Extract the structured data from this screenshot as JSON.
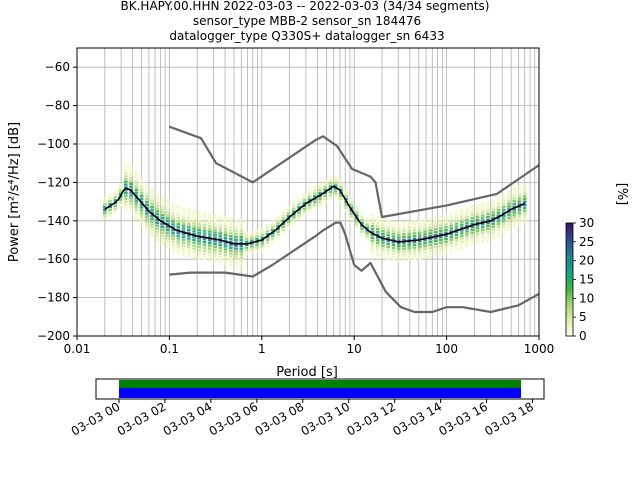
{
  "header": {
    "line1": "BK.HAPY.00.HHN   2022-03-03 -- 2022-03-03  (34/34 segments)",
    "line2": "sensor_type MBB-2 sensor_sn 184476",
    "line3": "datalogger_type Q330S+ datalogger_sn 6433"
  },
  "chart_data": [
    {
      "type": "heatmap",
      "xlabel": "Period [s]",
      "ylabel": "Power [m²/s⁴/Hz] [dB]",
      "xscale": "log",
      "xlim": [
        0.01,
        1000
      ],
      "ylim": [
        -200,
        -50
      ],
      "x_ticks": [
        {
          "v": 0.01,
          "label": "0.01"
        },
        {
          "v": 0.1,
          "label": "0.1"
        },
        {
          "v": 1,
          "label": "1"
        },
        {
          "v": 10,
          "label": "10"
        },
        {
          "v": 100,
          "label": "100"
        },
        {
          "v": 1000,
          "label": "1000"
        }
      ],
      "y_ticks": [
        {
          "v": -60,
          "label": "−60"
        },
        {
          "v": -80,
          "label": "−80"
        },
        {
          "v": -100,
          "label": "−100"
        },
        {
          "v": -120,
          "label": "−120"
        },
        {
          "v": -140,
          "label": "−140"
        },
        {
          "v": -160,
          "label": "−160"
        },
        {
          "v": -180,
          "label": "−180"
        },
        {
          "v": -200,
          "label": "−200"
        }
      ],
      "grid": true,
      "series": [
        {
          "role": "new-high-noise-model",
          "color": "#666666",
          "points": [
            [
              0.1,
              -91
            ],
            [
              0.22,
              -97
            ],
            [
              0.32,
              -110
            ],
            [
              0.8,
              -120
            ],
            [
              3.8,
              -98
            ],
            [
              4.6,
              -96
            ],
            [
              6.5,
              -101
            ],
            [
              9.5,
              -113
            ],
            [
              15,
              -117
            ],
            [
              17,
              -120
            ],
            [
              20,
              -138
            ],
            [
              100,
              -132
            ],
            [
              350,
              -126
            ],
            [
              1000,
              -111
            ]
          ]
        },
        {
          "role": "new-low-noise-model",
          "color": "#666666",
          "points": [
            [
              0.1,
              -168
            ],
            [
              0.17,
              -167
            ],
            [
              0.4,
              -167
            ],
            [
              0.8,
              -169
            ],
            [
              1.3,
              -163
            ],
            [
              3.8,
              -148
            ],
            [
              4.6,
              -145
            ],
            [
              6.3,
              -141
            ],
            [
              7.1,
              -141
            ],
            [
              8,
              -147
            ],
            [
              10,
              -163
            ],
            [
              12,
              -166
            ],
            [
              15,
              -162
            ],
            [
              22,
              -177
            ],
            [
              32,
              -185
            ],
            [
              45,
              -187.5
            ],
            [
              70,
              -187.5
            ],
            [
              100,
              -185
            ],
            [
              150,
              -185
            ],
            [
              300,
              -187.5
            ],
            [
              600,
              -184
            ],
            [
              1000,
              -178
            ]
          ]
        },
        {
          "role": "mode",
          "color": "#000000",
          "points": [
            [
              0.02,
              -134
            ],
            [
              0.025,
              -131
            ],
            [
              0.028,
              -129
            ],
            [
              0.032,
              -124
            ],
            [
              0.034,
              -123
            ],
            [
              0.038,
              -124
            ],
            [
              0.045,
              -128
            ],
            [
              0.06,
              -135
            ],
            [
              0.08,
              -140
            ],
            [
              0.12,
              -145
            ],
            [
              0.2,
              -148
            ],
            [
              0.35,
              -150
            ],
            [
              0.5,
              -152
            ],
            [
              0.7,
              -152
            ],
            [
              1,
              -150
            ],
            [
              1.4,
              -145
            ],
            [
              2,
              -138
            ],
            [
              3,
              -131
            ],
            [
              4.5,
              -126
            ],
            [
              6,
              -122
            ],
            [
              7,
              -124
            ],
            [
              9,
              -133
            ],
            [
              12,
              -142
            ],
            [
              15,
              -146
            ],
            [
              20,
              -149
            ],
            [
              30,
              -151
            ],
            [
              50,
              -150
            ],
            [
              100,
              -147
            ],
            [
              150,
              -144
            ],
            [
              200,
              -142
            ],
            [
              300,
              -140
            ],
            [
              400,
              -137
            ],
            [
              500,
              -134
            ],
            [
              700,
              -131
            ]
          ]
        }
      ],
      "pdf_colorbar": {
        "label": "[%]",
        "range": [
          0,
          30
        ],
        "ticks": [
          {
            "v": 0,
            "label": "0"
          },
          {
            "v": 5,
            "label": "5"
          },
          {
            "v": 10,
            "label": "10"
          },
          {
            "v": 15,
            "label": "15"
          },
          {
            "v": 20,
            "label": "20"
          },
          {
            "v": 25,
            "label": "25"
          },
          {
            "v": 30,
            "label": "30"
          }
        ]
      }
    },
    {
      "type": "bar",
      "role": "data-coverage",
      "x_ticks": [
        "03-03 00",
        "03-03 02",
        "03-03 04",
        "03-03 06",
        "03-03 08",
        "03-03 10",
        "03-03 12",
        "03-03 14",
        "03-03 16",
        "03-03 18"
      ],
      "x_tick_hours": [
        0,
        2,
        4,
        6,
        8,
        10,
        12,
        14,
        16,
        18
      ],
      "xlim_hours": [
        -1,
        18.5
      ],
      "coverage_hours": [
        0,
        17.5
      ],
      "colors": {
        "used": "#008000",
        "available": "#0000ff"
      }
    }
  ]
}
